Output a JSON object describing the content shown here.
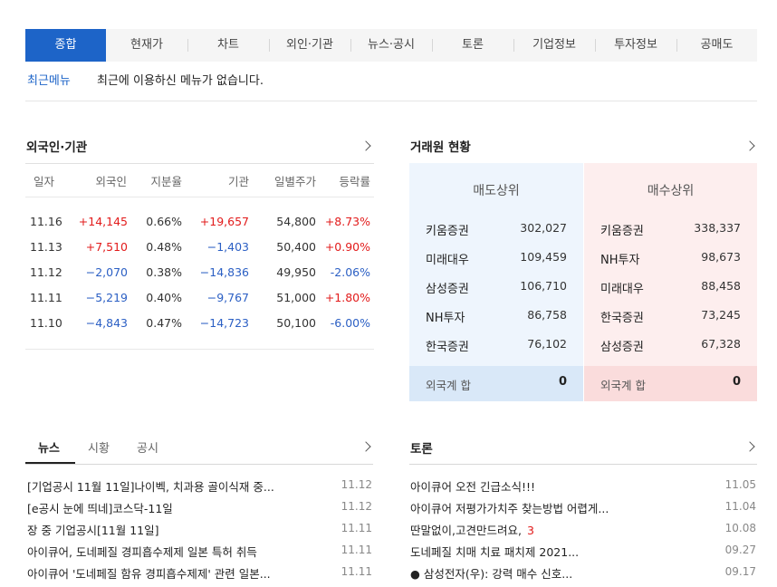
{
  "tabs": [
    "종합",
    "현재가",
    "차트",
    "외인·기관",
    "뉴스·공시",
    "토론",
    "기업정보",
    "투자정보",
    "공매도"
  ],
  "recent_menu": {
    "label": "최근메뉴",
    "message": "최근에 이용하신 메뉴가 없습니다."
  },
  "investor": {
    "title": "외국인·기관",
    "columns": [
      "일자",
      "외국인",
      "지분율",
      "기관",
      "일별주가",
      "등락률"
    ],
    "rows": [
      {
        "date": "11.16",
        "foreign": "+14,145",
        "ratio": "0.66%",
        "inst": "+19,657",
        "price": "54,800",
        "change": "+8.73%"
      },
      {
        "date": "11.13",
        "foreign": "+7,510",
        "ratio": "0.48%",
        "inst": "−1,403",
        "price": "50,400",
        "change": "+0.90%"
      },
      {
        "date": "11.12",
        "foreign": "−2,070",
        "ratio": "0.38%",
        "inst": "−14,836",
        "price": "49,950",
        "change": "-2.06%"
      },
      {
        "date": "11.11",
        "foreign": "−5,219",
        "ratio": "0.40%",
        "inst": "−9,767",
        "price": "51,000",
        "change": "+1.80%"
      },
      {
        "date": "11.10",
        "foreign": "−4,843",
        "ratio": "0.47%",
        "inst": "−14,723",
        "price": "50,100",
        "change": "-6.00%"
      }
    ]
  },
  "brokers": {
    "title": "거래원 현황",
    "sell": {
      "header": "매도상위",
      "items": [
        {
          "name": "키움증권",
          "value": "302,027"
        },
        {
          "name": "미래대우",
          "value": "109,459"
        },
        {
          "name": "삼성증권",
          "value": "106,710"
        },
        {
          "name": "NH투자",
          "value": "86,758"
        },
        {
          "name": "한국증권",
          "value": "76,102"
        }
      ],
      "footer_label": "외국계 합",
      "footer_value": "0"
    },
    "buy": {
      "header": "매수상위",
      "items": [
        {
          "name": "키움증권",
          "value": "338,337"
        },
        {
          "name": "NH투자",
          "value": "98,673"
        },
        {
          "name": "미래대우",
          "value": "88,458"
        },
        {
          "name": "한국증권",
          "value": "73,245"
        },
        {
          "name": "삼성증권",
          "value": "67,328"
        }
      ],
      "footer_label": "외국계 합",
      "footer_value": "0"
    }
  },
  "news": {
    "tabs": [
      "뉴스",
      "시황",
      "공시"
    ],
    "items": [
      {
        "title": "[기업공시 11월 11일]나이벡, 치과용 골이식재 중...",
        "date": "11.12"
      },
      {
        "title": "[e공시 눈에 띄네]코스닥-11일",
        "date": "11.12"
      },
      {
        "title": "장 중 기업공시[11월 11일]",
        "date": "11.11"
      },
      {
        "title": "아이큐어, 도네페질 경피흡수제제 일본 특허 취득",
        "date": "11.11"
      },
      {
        "title": "아이큐어 '도네페질 함유 경피흡수제제' 관련 일본...",
        "date": "11.11"
      }
    ]
  },
  "discussion": {
    "title": "토론",
    "items": [
      {
        "title": "아이큐어 오전 긴급소식!!!",
        "comments": "",
        "date": "11.05"
      },
      {
        "title": "아이큐어 저평가가치주 찾는방법 어렵게...",
        "comments": "",
        "date": "11.04"
      },
      {
        "title": "딴말없이,고견만드려요,",
        "comments": "3",
        "date": "10.08"
      },
      {
        "title": "도네페질 치매 치료 패치제 2021...",
        "comments": "",
        "date": "09.27"
      },
      {
        "title": "● 삼성전자(우): 강력 매수 신호...",
        "comments": "",
        "date": "09.17"
      }
    ]
  },
  "icons": {
    "more": "chevron-right-icon"
  }
}
